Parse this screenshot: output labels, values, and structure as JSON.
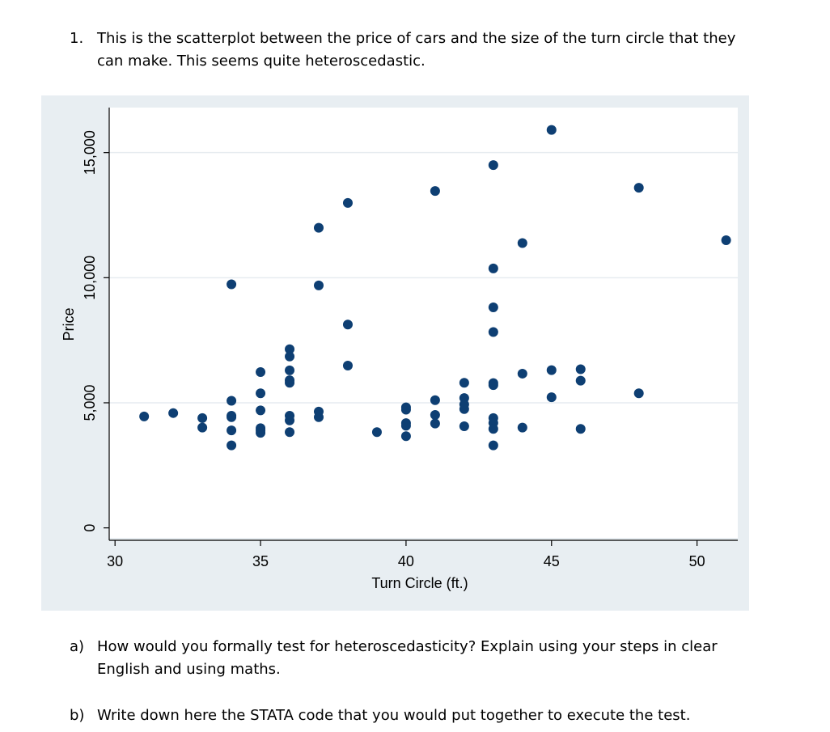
{
  "question1": {
    "number": "1.",
    "text": "This is the scatterplot between the price of cars and the size of the turn circle that they can make. This seems quite heteroscedastic."
  },
  "question_a": {
    "number": "a)",
    "text": "How would you formally test for heteroscedasticity? Explain using your steps in clear English and using maths."
  },
  "question_b": {
    "number": "b)",
    "text": "Write down here the STATA code that you would put together to execute the test."
  },
  "chart_data": {
    "type": "scatter",
    "xlabel": "Turn Circle (ft.)",
    "ylabel": "Price",
    "xlim": [
      29.8,
      51.4
    ],
    "ylim": [
      -400,
      16800
    ],
    "x_ticks": [
      30,
      35,
      40,
      45,
      50
    ],
    "x_tick_labels": [
      "30",
      "35",
      "40",
      "45",
      "50"
    ],
    "y_ticks": [
      0,
      5000,
      10000,
      15000
    ],
    "y_tick_labels": [
      "0",
      "5,000",
      "10,000",
      "15,000"
    ],
    "grid": "horizontal",
    "colors": {
      "marker": "#0e3f73",
      "plot_bg": "#ffffff",
      "panel_bg": "#e8eef2",
      "grid": "#e6ecf0"
    },
    "points": [
      {
        "x": 31,
        "y": 4453
      },
      {
        "x": 32,
        "y": 4589
      },
      {
        "x": 33,
        "y": 4389
      },
      {
        "x": 33,
        "y": 4010
      },
      {
        "x": 34,
        "y": 9735
      },
      {
        "x": 34,
        "y": 5079
      },
      {
        "x": 34,
        "y": 4482
      },
      {
        "x": 34,
        "y": 4425
      },
      {
        "x": 34,
        "y": 3895
      },
      {
        "x": 34,
        "y": 3299
      },
      {
        "x": 35,
        "y": 6229
      },
      {
        "x": 35,
        "y": 5379
      },
      {
        "x": 35,
        "y": 4697
      },
      {
        "x": 35,
        "y": 3984
      },
      {
        "x": 35,
        "y": 3895
      },
      {
        "x": 35,
        "y": 3798
      },
      {
        "x": 36,
        "y": 7140
      },
      {
        "x": 36,
        "y": 6850
      },
      {
        "x": 36,
        "y": 6295
      },
      {
        "x": 36,
        "y": 5899
      },
      {
        "x": 36,
        "y": 5799
      },
      {
        "x": 36,
        "y": 4482
      },
      {
        "x": 36,
        "y": 4296
      },
      {
        "x": 36,
        "y": 3829
      },
      {
        "x": 37,
        "y": 11995
      },
      {
        "x": 37,
        "y": 9690
      },
      {
        "x": 37,
        "y": 4647
      },
      {
        "x": 37,
        "y": 4425
      },
      {
        "x": 38,
        "y": 12990
      },
      {
        "x": 38,
        "y": 8129
      },
      {
        "x": 38,
        "y": 6486
      },
      {
        "x": 39,
        "y": 3829
      },
      {
        "x": 40,
        "y": 4816
      },
      {
        "x": 40,
        "y": 4723
      },
      {
        "x": 40,
        "y": 4187
      },
      {
        "x": 40,
        "y": 4082
      },
      {
        "x": 40,
        "y": 3667
      },
      {
        "x": 41,
        "y": 13466
      },
      {
        "x": 41,
        "y": 5104
      },
      {
        "x": 41,
        "y": 4516
      },
      {
        "x": 41,
        "y": 4172
      },
      {
        "x": 42,
        "y": 5798
      },
      {
        "x": 42,
        "y": 5189
      },
      {
        "x": 42,
        "y": 4934
      },
      {
        "x": 42,
        "y": 4749
      },
      {
        "x": 42,
        "y": 4060
      },
      {
        "x": 43,
        "y": 14500
      },
      {
        "x": 43,
        "y": 10371
      },
      {
        "x": 43,
        "y": 8814
      },
      {
        "x": 43,
        "y": 7827
      },
      {
        "x": 43,
        "y": 5788
      },
      {
        "x": 43,
        "y": 5705
      },
      {
        "x": 43,
        "y": 4389
      },
      {
        "x": 43,
        "y": 4195
      },
      {
        "x": 43,
        "y": 3955
      },
      {
        "x": 43,
        "y": 3299
      },
      {
        "x": 44,
        "y": 11385
      },
      {
        "x": 44,
        "y": 6165
      },
      {
        "x": 44,
        "y": 4010
      },
      {
        "x": 45,
        "y": 15906
      },
      {
        "x": 45,
        "y": 6303
      },
      {
        "x": 45,
        "y": 5222
      },
      {
        "x": 46,
        "y": 6342
      },
      {
        "x": 46,
        "y": 5886
      },
      {
        "x": 46,
        "y": 3955
      },
      {
        "x": 48,
        "y": 13594
      },
      {
        "x": 48,
        "y": 5379
      },
      {
        "x": 51,
        "y": 11497
      }
    ]
  }
}
